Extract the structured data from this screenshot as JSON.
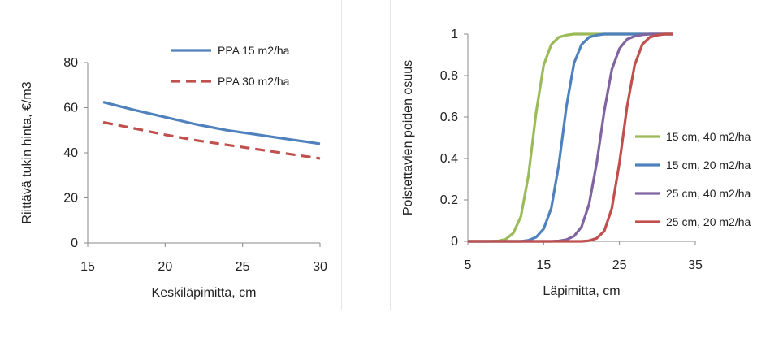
{
  "chart_data": [
    {
      "type": "line",
      "xlabel": "Keskiläpimitta, cm",
      "ylabel": "Riittävä tukin hinta, €/m3",
      "xlim": [
        15,
        30
      ],
      "ylim": [
        0,
        80
      ],
      "xticks": [
        15,
        20,
        25,
        30
      ],
      "yticks": [
        0,
        20,
        40,
        60,
        80
      ],
      "legend_position": "top-right",
      "grid": false,
      "series": [
        {
          "name": "PPA 15 m2/ha",
          "color": "#4f81bd",
          "dash": "solid",
          "x": [
            16,
            18,
            20,
            22,
            24,
            26,
            28,
            30
          ],
          "y": [
            62.5,
            59.0,
            55.8,
            52.6,
            50.0,
            48.0,
            46.0,
            44.0
          ]
        },
        {
          "name": "PPA 30 m2/ha",
          "color": "#c0504d",
          "dash": "dashed",
          "x": [
            16,
            18,
            20,
            22,
            24,
            26,
            28,
            30
          ],
          "y": [
            53.5,
            50.8,
            48.0,
            45.5,
            43.5,
            41.5,
            39.5,
            37.5
          ]
        }
      ]
    },
    {
      "type": "line",
      "xlabel": "Läpimitta, cm",
      "ylabel": "Poistettavien poiden osuus",
      "xlim": [
        5,
        35
      ],
      "ylim": [
        0,
        1
      ],
      "xticks": [
        5,
        15,
        25,
        35
      ],
      "yticks": [
        0,
        0.2,
        0.4,
        0.6,
        0.8,
        1
      ],
      "legend_position": "right",
      "grid": false,
      "series": [
        {
          "name": "15 cm, 40 m2/ha",
          "color": "#9bbb59",
          "x": [
            5,
            6,
            7,
            8,
            9,
            10,
            11,
            12,
            13,
            14,
            15,
            16,
            17,
            18,
            19,
            20,
            22,
            24,
            26,
            28,
            30,
            32
          ],
          "y": [
            0,
            0,
            0,
            0,
            0.002,
            0.01,
            0.04,
            0.12,
            0.32,
            0.62,
            0.85,
            0.95,
            0.985,
            0.995,
            1,
            1,
            1,
            1,
            1,
            1,
            1,
            1
          ]
        },
        {
          "name": "15 cm, 20 m2/ha",
          "color": "#4f81bd",
          "x": [
            5,
            8,
            10,
            12,
            13,
            14,
            15,
            16,
            17,
            18,
            19,
            20,
            21,
            22,
            23,
            24,
            26,
            28,
            30,
            32
          ],
          "y": [
            0,
            0,
            0,
            0,
            0.005,
            0.02,
            0.06,
            0.16,
            0.37,
            0.65,
            0.86,
            0.95,
            0.985,
            0.995,
            1,
            1,
            1,
            1,
            1,
            1
          ]
        },
        {
          "name": "25 cm, 40 m2/ha",
          "color": "#8064a2",
          "x": [
            5,
            10,
            14,
            16,
            17,
            18,
            19,
            20,
            21,
            22,
            23,
            24,
            25,
            26,
            27,
            28,
            29,
            30,
            32
          ],
          "y": [
            0,
            0,
            0,
            0,
            0.002,
            0.008,
            0.025,
            0.07,
            0.18,
            0.38,
            0.63,
            0.83,
            0.93,
            0.975,
            0.99,
            0.997,
            1,
            1,
            1
          ]
        },
        {
          "name": "25 cm, 20 m2/ha",
          "color": "#c0504d",
          "x": [
            5,
            10,
            15,
            20,
            21,
            22,
            23,
            24,
            25,
            26,
            27,
            28,
            29,
            30,
            31,
            32
          ],
          "y": [
            0,
            0,
            0,
            0,
            0.003,
            0.015,
            0.05,
            0.16,
            0.38,
            0.65,
            0.85,
            0.95,
            0.985,
            0.995,
            1,
            1
          ]
        }
      ]
    }
  ]
}
